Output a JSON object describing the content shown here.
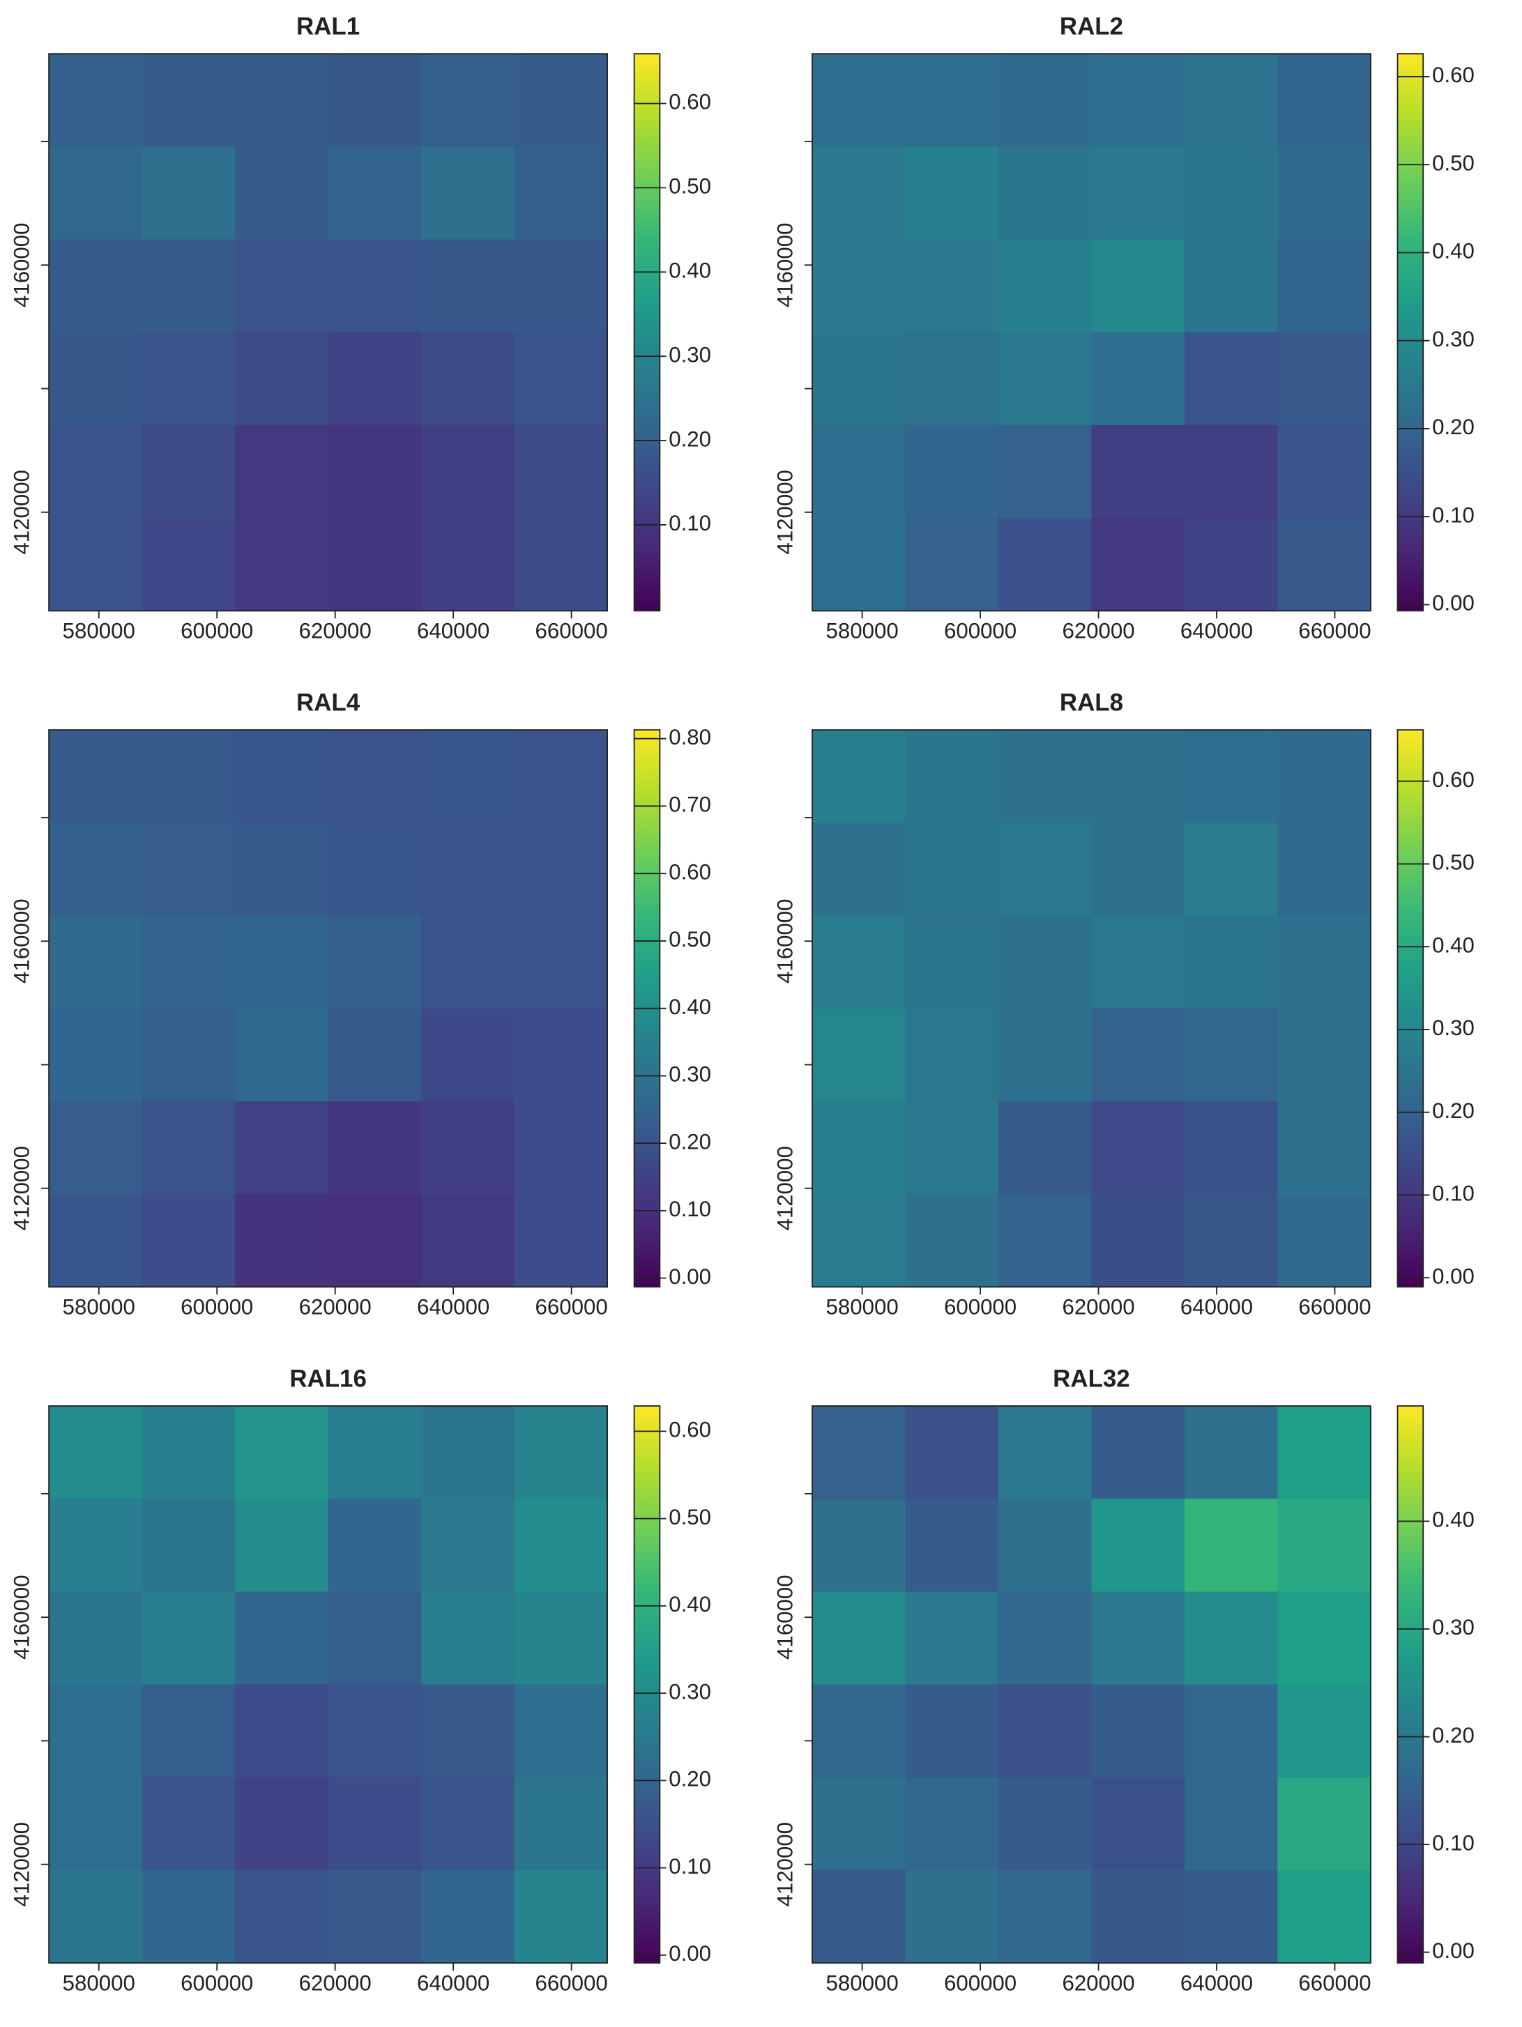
{
  "chart_data": [
    {
      "type": "heatmap",
      "title": "RAL1",
      "colormap": "viridis",
      "xlim": [
        571545,
        666070
      ],
      "ylim": [
        4104041,
        4194197
      ],
      "xticks": [
        580000,
        600000,
        620000,
        640000,
        660000
      ],
      "yticks": [
        4120000,
        4160000
      ],
      "yticks_minor": [
        4140000,
        4180000
      ],
      "clim": [
        -0.002,
        0.659
      ],
      "cticks": [
        {
          "value": 0.1,
          "label": "0.10"
        },
        {
          "value": 0.2,
          "label": "0.20"
        },
        {
          "value": 0.3,
          "label": "0.30"
        },
        {
          "value": 0.4,
          "label": "0.40"
        },
        {
          "value": 0.5,
          "label": "0.50"
        },
        {
          "value": 0.6,
          "label": "0.60"
        }
      ],
      "values": [
        [
          0.2,
          0.19,
          0.19,
          0.18,
          0.2,
          0.19
        ],
        [
          0.22,
          0.24,
          0.19,
          0.21,
          0.24,
          0.2
        ],
        [
          0.19,
          0.19,
          0.17,
          0.17,
          0.18,
          0.18
        ],
        [
          0.18,
          0.17,
          0.15,
          0.13,
          0.15,
          0.17
        ],
        [
          0.17,
          0.15,
          0.11,
          0.1,
          0.12,
          0.15
        ],
        [
          0.17,
          0.14,
          0.11,
          0.1,
          0.12,
          0.15
        ]
      ]
    },
    {
      "type": "heatmap",
      "title": "RAL2",
      "colormap": "viridis",
      "xlim": [
        571545,
        666070
      ],
      "ylim": [
        4104041,
        4194197
      ],
      "xticks": [
        580000,
        600000,
        620000,
        640000,
        660000
      ],
      "yticks": [
        4120000,
        4160000
      ],
      "yticks_minor": [
        4140000,
        4180000
      ],
      "clim": [
        -0.007,
        0.626
      ],
      "cticks": [
        {
          "value": 0,
          "label": "0.00"
        },
        {
          "value": 0.1,
          "label": "0.10"
        },
        {
          "value": 0.2,
          "label": "0.20"
        },
        {
          "value": 0.3,
          "label": "0.30"
        },
        {
          "value": 0.4,
          "label": "0.40"
        },
        {
          "value": 0.5,
          "label": "0.50"
        },
        {
          "value": 0.6,
          "label": "0.60"
        }
      ],
      "values": [
        [
          0.22,
          0.22,
          0.21,
          0.22,
          0.23,
          0.2
        ],
        [
          0.25,
          0.27,
          0.24,
          0.25,
          0.24,
          0.21
        ],
        [
          0.25,
          0.25,
          0.27,
          0.29,
          0.24,
          0.2
        ],
        [
          0.24,
          0.23,
          0.25,
          0.22,
          0.16,
          0.17
        ],
        [
          0.22,
          0.2,
          0.19,
          0.11,
          0.11,
          0.16
        ],
        [
          0.22,
          0.19,
          0.15,
          0.1,
          0.12,
          0.17
        ]
      ]
    },
    {
      "type": "heatmap",
      "title": "RAL4",
      "colormap": "viridis",
      "xlim": [
        571545,
        666070
      ],
      "ylim": [
        4104041,
        4194197
      ],
      "xticks": [
        580000,
        600000,
        620000,
        640000,
        660000
      ],
      "yticks": [
        4120000,
        4160000
      ],
      "yticks_minor": [
        4140000,
        4180000
      ],
      "clim": [
        -0.013,
        0.813
      ],
      "cticks": [
        {
          "value": 0,
          "label": "0.00"
        },
        {
          "value": 0.1,
          "label": "0.10"
        },
        {
          "value": 0.2,
          "label": "0.20"
        },
        {
          "value": 0.3,
          "label": "0.30"
        },
        {
          "value": 0.4,
          "label": "0.40"
        },
        {
          "value": 0.5,
          "label": "0.50"
        },
        {
          "value": 0.6,
          "label": "0.60"
        },
        {
          "value": 0.7,
          "label": "0.70"
        },
        {
          "value": 0.8,
          "label": "0.80"
        }
      ],
      "values": [
        [
          0.22,
          0.22,
          0.21,
          0.2,
          0.21,
          0.2
        ],
        [
          0.24,
          0.23,
          0.22,
          0.21,
          0.2,
          0.2
        ],
        [
          0.27,
          0.25,
          0.26,
          0.24,
          0.2,
          0.2
        ],
        [
          0.26,
          0.24,
          0.27,
          0.22,
          0.17,
          0.18
        ],
        [
          0.23,
          0.2,
          0.15,
          0.12,
          0.14,
          0.18
        ],
        [
          0.21,
          0.18,
          0.11,
          0.1,
          0.13,
          0.18
        ]
      ]
    },
    {
      "type": "heatmap",
      "title": "RAL8",
      "colormap": "viridis",
      "xlim": [
        571545,
        666070
      ],
      "ylim": [
        4104041,
        4194197
      ],
      "xticks": [
        580000,
        600000,
        620000,
        640000,
        660000
      ],
      "yticks": [
        4120000,
        4160000
      ],
      "yticks_minor": [
        4140000,
        4180000
      ],
      "clim": [
        -0.011,
        0.662
      ],
      "cticks": [
        {
          "value": 0,
          "label": "0.00"
        },
        {
          "value": 0.1,
          "label": "0.10"
        },
        {
          "value": 0.2,
          "label": "0.20"
        },
        {
          "value": 0.3,
          "label": "0.30"
        },
        {
          "value": 0.4,
          "label": "0.40"
        },
        {
          "value": 0.5,
          "label": "0.50"
        },
        {
          "value": 0.6,
          "label": "0.60"
        }
      ],
      "values": [
        [
          0.28,
          0.25,
          0.24,
          0.24,
          0.23,
          0.22
        ],
        [
          0.24,
          0.25,
          0.26,
          0.24,
          0.27,
          0.22
        ],
        [
          0.27,
          0.25,
          0.24,
          0.26,
          0.25,
          0.24
        ],
        [
          0.3,
          0.26,
          0.24,
          0.2,
          0.21,
          0.24
        ],
        [
          0.28,
          0.26,
          0.18,
          0.14,
          0.16,
          0.24
        ],
        [
          0.27,
          0.24,
          0.2,
          0.15,
          0.17,
          0.22
        ]
      ]
    },
    {
      "type": "heatmap",
      "title": "RAL16",
      "colormap": "viridis",
      "xlim": [
        571545,
        666070
      ],
      "ylim": [
        4104041,
        4194197
      ],
      "xticks": [
        580000,
        600000,
        620000,
        640000,
        660000
      ],
      "yticks": [
        4120000,
        4160000
      ],
      "yticks_minor": [
        4140000,
        4180000
      ],
      "clim": [
        -0.009,
        0.629
      ],
      "cticks": [
        {
          "value": 0,
          "label": "0.00"
        },
        {
          "value": 0.1,
          "label": "0.10"
        },
        {
          "value": 0.2,
          "label": "0.20"
        },
        {
          "value": 0.3,
          "label": "0.30"
        },
        {
          "value": 0.4,
          "label": "0.40"
        },
        {
          "value": 0.5,
          "label": "0.50"
        },
        {
          "value": 0.6,
          "label": "0.60"
        }
      ],
      "values": [
        [
          0.3,
          0.27,
          0.32,
          0.26,
          0.24,
          0.28
        ],
        [
          0.26,
          0.24,
          0.3,
          0.2,
          0.25,
          0.3
        ],
        [
          0.24,
          0.26,
          0.2,
          0.18,
          0.26,
          0.28
        ],
        [
          0.22,
          0.18,
          0.14,
          0.16,
          0.17,
          0.22
        ],
        [
          0.22,
          0.16,
          0.12,
          0.14,
          0.16,
          0.24
        ],
        [
          0.24,
          0.2,
          0.16,
          0.17,
          0.2,
          0.28
        ]
      ]
    },
    {
      "type": "heatmap",
      "title": "RAL32",
      "colormap": "viridis",
      "xlim": [
        571545,
        666070
      ],
      "ylim": [
        4104041,
        4194197
      ],
      "xticks": [
        580000,
        600000,
        620000,
        640000,
        660000
      ],
      "yticks": [
        4120000,
        4160000
      ],
      "yticks_minor": [
        4140000,
        4180000
      ],
      "clim": [
        -0.01,
        0.507
      ],
      "cticks": [
        {
          "value": 0,
          "label": "0.00"
        },
        {
          "value": 0.1,
          "label": "0.10"
        },
        {
          "value": 0.2,
          "label": "0.20"
        },
        {
          "value": 0.3,
          "label": "0.30"
        },
        {
          "value": 0.4,
          "label": "0.40"
        }
      ],
      "values": [
        [
          0.15,
          0.12,
          0.2,
          0.14,
          0.18,
          0.28
        ],
        [
          0.18,
          0.14,
          0.18,
          0.26,
          0.33,
          0.3
        ],
        [
          0.24,
          0.2,
          0.16,
          0.2,
          0.24,
          0.28
        ],
        [
          0.16,
          0.14,
          0.12,
          0.14,
          0.16,
          0.26
        ],
        [
          0.18,
          0.16,
          0.14,
          0.12,
          0.16,
          0.3
        ],
        [
          0.14,
          0.18,
          0.16,
          0.13,
          0.14,
          0.28
        ]
      ]
    }
  ]
}
